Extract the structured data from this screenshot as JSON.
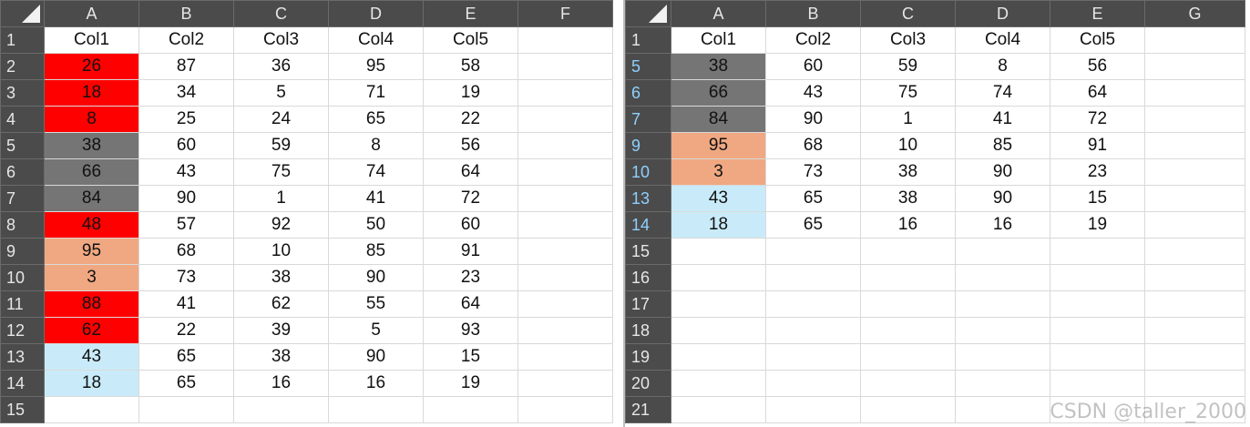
{
  "colors": {
    "header_bg": "#4b4b4b",
    "red": "#ff0000",
    "gray": "#757575",
    "salmon": "#f0a882",
    "light_blue": "#c9ebf9"
  },
  "left_sheet": {
    "columns": [
      "A",
      "B",
      "C",
      "D",
      "E",
      "F"
    ],
    "row_numbers": [
      "1",
      "2",
      "3",
      "4",
      "5",
      "6",
      "7",
      "8",
      "9",
      "10",
      "11",
      "12",
      "13",
      "14",
      "15"
    ],
    "header_row": [
      "Col1",
      "Col2",
      "Col3",
      "Col4",
      "Col5",
      ""
    ],
    "rows": [
      {
        "fill": "red",
        "cells": [
          "26",
          "87",
          "36",
          "95",
          "58",
          ""
        ]
      },
      {
        "fill": "red",
        "cells": [
          "18",
          "34",
          "5",
          "71",
          "19",
          ""
        ]
      },
      {
        "fill": "red",
        "cells": [
          "8",
          "25",
          "24",
          "65",
          "22",
          ""
        ]
      },
      {
        "fill": "gray",
        "cells": [
          "38",
          "60",
          "59",
          "8",
          "56",
          ""
        ]
      },
      {
        "fill": "gray",
        "cells": [
          "66",
          "43",
          "75",
          "74",
          "64",
          ""
        ]
      },
      {
        "fill": "gray",
        "cells": [
          "84",
          "90",
          "1",
          "41",
          "72",
          ""
        ]
      },
      {
        "fill": "red",
        "cells": [
          "48",
          "57",
          "92",
          "50",
          "60",
          ""
        ]
      },
      {
        "fill": "salmon",
        "cells": [
          "95",
          "68",
          "10",
          "85",
          "91",
          ""
        ]
      },
      {
        "fill": "salmon",
        "cells": [
          "3",
          "73",
          "38",
          "90",
          "23",
          ""
        ]
      },
      {
        "fill": "red",
        "cells": [
          "88",
          "41",
          "62",
          "55",
          "64",
          ""
        ]
      },
      {
        "fill": "red",
        "cells": [
          "62",
          "22",
          "39",
          "5",
          "93",
          ""
        ]
      },
      {
        "fill": "light_blue",
        "cells": [
          "43",
          "65",
          "38",
          "90",
          "15",
          ""
        ]
      },
      {
        "fill": "light_blue",
        "cells": [
          "18",
          "65",
          "16",
          "16",
          "19",
          ""
        ]
      },
      {
        "fill": "",
        "cells": [
          "",
          "",
          "",
          "",
          "",
          ""
        ]
      }
    ]
  },
  "right_sheet": {
    "columns": [
      "A",
      "B",
      "C",
      "D",
      "E",
      "G"
    ],
    "row_numbers": [
      "1",
      "5",
      "6",
      "7",
      "9",
      "10",
      "13",
      "14",
      "15",
      "16",
      "17",
      "18",
      "19",
      "20",
      "21"
    ],
    "filtered_rows": [
      "5",
      "6",
      "7",
      "9",
      "10",
      "13",
      "14"
    ],
    "header_row": [
      "Col1",
      "Col2",
      "Col3",
      "Col4",
      "Col5",
      ""
    ],
    "rows": [
      {
        "fill": "gray",
        "cells": [
          "38",
          "60",
          "59",
          "8",
          "56",
          ""
        ]
      },
      {
        "fill": "gray",
        "cells": [
          "66",
          "43",
          "75",
          "74",
          "64",
          ""
        ]
      },
      {
        "fill": "gray",
        "cells": [
          "84",
          "90",
          "1",
          "41",
          "72",
          ""
        ]
      },
      {
        "fill": "salmon",
        "cells": [
          "95",
          "68",
          "10",
          "85",
          "91",
          ""
        ]
      },
      {
        "fill": "salmon",
        "cells": [
          "3",
          "73",
          "38",
          "90",
          "23",
          ""
        ]
      },
      {
        "fill": "light_blue",
        "cells": [
          "43",
          "65",
          "38",
          "90",
          "15",
          ""
        ]
      },
      {
        "fill": "light_blue",
        "cells": [
          "18",
          "65",
          "16",
          "16",
          "19",
          ""
        ]
      },
      {
        "fill": "",
        "cells": [
          "",
          "",
          "",
          "",
          "",
          ""
        ]
      },
      {
        "fill": "",
        "cells": [
          "",
          "",
          "",
          "",
          "",
          ""
        ]
      },
      {
        "fill": "",
        "cells": [
          "",
          "",
          "",
          "",
          "",
          ""
        ]
      },
      {
        "fill": "",
        "cells": [
          "",
          "",
          "",
          "",
          "",
          ""
        ]
      },
      {
        "fill": "",
        "cells": [
          "",
          "",
          "",
          "",
          "",
          ""
        ]
      },
      {
        "fill": "",
        "cells": [
          "",
          "",
          "",
          "",
          "",
          ""
        ]
      },
      {
        "fill": "",
        "cells": [
          "",
          "",
          "",
          "",
          "",
          ""
        ]
      }
    ]
  },
  "watermark": "CSDN @taller_2000"
}
